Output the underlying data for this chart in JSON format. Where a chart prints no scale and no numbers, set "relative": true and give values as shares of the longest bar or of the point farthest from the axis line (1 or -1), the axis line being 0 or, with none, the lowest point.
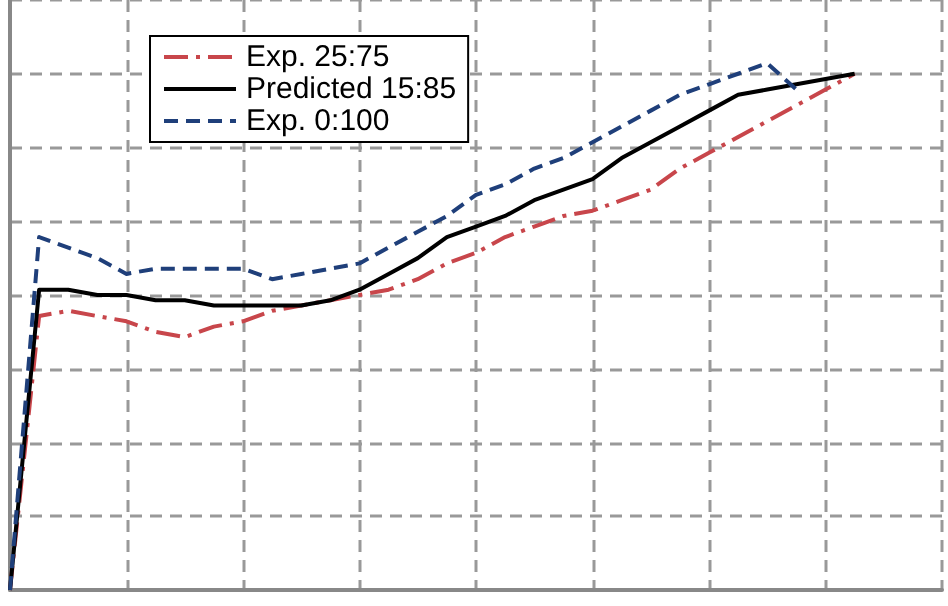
{
  "chart_data": {
    "type": "line",
    "relative": true,
    "grid": true,
    "legend": "top",
    "marker": "none",
    "categories": [
      null,
      null,
      null,
      null,
      null,
      null,
      null,
      null,
      null,
      null,
      null,
      null,
      null,
      null,
      null,
      null,
      null,
      null,
      null,
      null,
      null,
      null,
      null,
      null,
      null,
      null,
      null,
      null,
      null,
      null,
      null,
      null,
      null
    ],
    "series": [
      {
        "name": "Exp. 25:75",
        "color": "#c8464b",
        "line_style": "dashdot",
        "values": [
          0,
          0.52,
          0.53,
          0.52,
          0.51,
          0.49,
          0.48,
          0.5,
          0.51,
          0.53,
          0.54,
          0.55,
          0.56,
          0.57,
          0.59,
          0.62,
          0.64,
          0.67,
          0.69,
          0.71,
          0.72,
          0.74,
          0.76,
          0.8,
          0.83,
          0.86,
          0.89,
          0.92,
          0.95,
          0.98,
          null,
          null,
          null
        ]
      },
      {
        "name": "Predicted 15:85",
        "color": "#000000",
        "line_style": "solid",
        "values": [
          0,
          0.57,
          0.57,
          0.56,
          0.56,
          0.55,
          0.55,
          0.54,
          0.54,
          0.54,
          0.54,
          0.55,
          0.57,
          0.6,
          0.63,
          0.67,
          0.69,
          0.71,
          0.74,
          0.76,
          0.78,
          0.82,
          0.85,
          0.88,
          0.91,
          0.94,
          0.95,
          0.96,
          0.97,
          0.98,
          null,
          null,
          null
        ]
      },
      {
        "name": "Exp. 0:100",
        "color": "#1f3f7a",
        "line_style": "dashed",
        "values": [
          0,
          0.67,
          0.65,
          0.63,
          0.6,
          0.61,
          0.61,
          0.61,
          0.61,
          0.59,
          0.6,
          0.61,
          0.62,
          0.65,
          0.68,
          0.71,
          0.75,
          0.77,
          0.8,
          0.82,
          0.85,
          0.88,
          0.91,
          0.94,
          0.96,
          0.98,
          1,
          0.95,
          null,
          null,
          null,
          null,
          null
        ]
      }
    ]
  }
}
